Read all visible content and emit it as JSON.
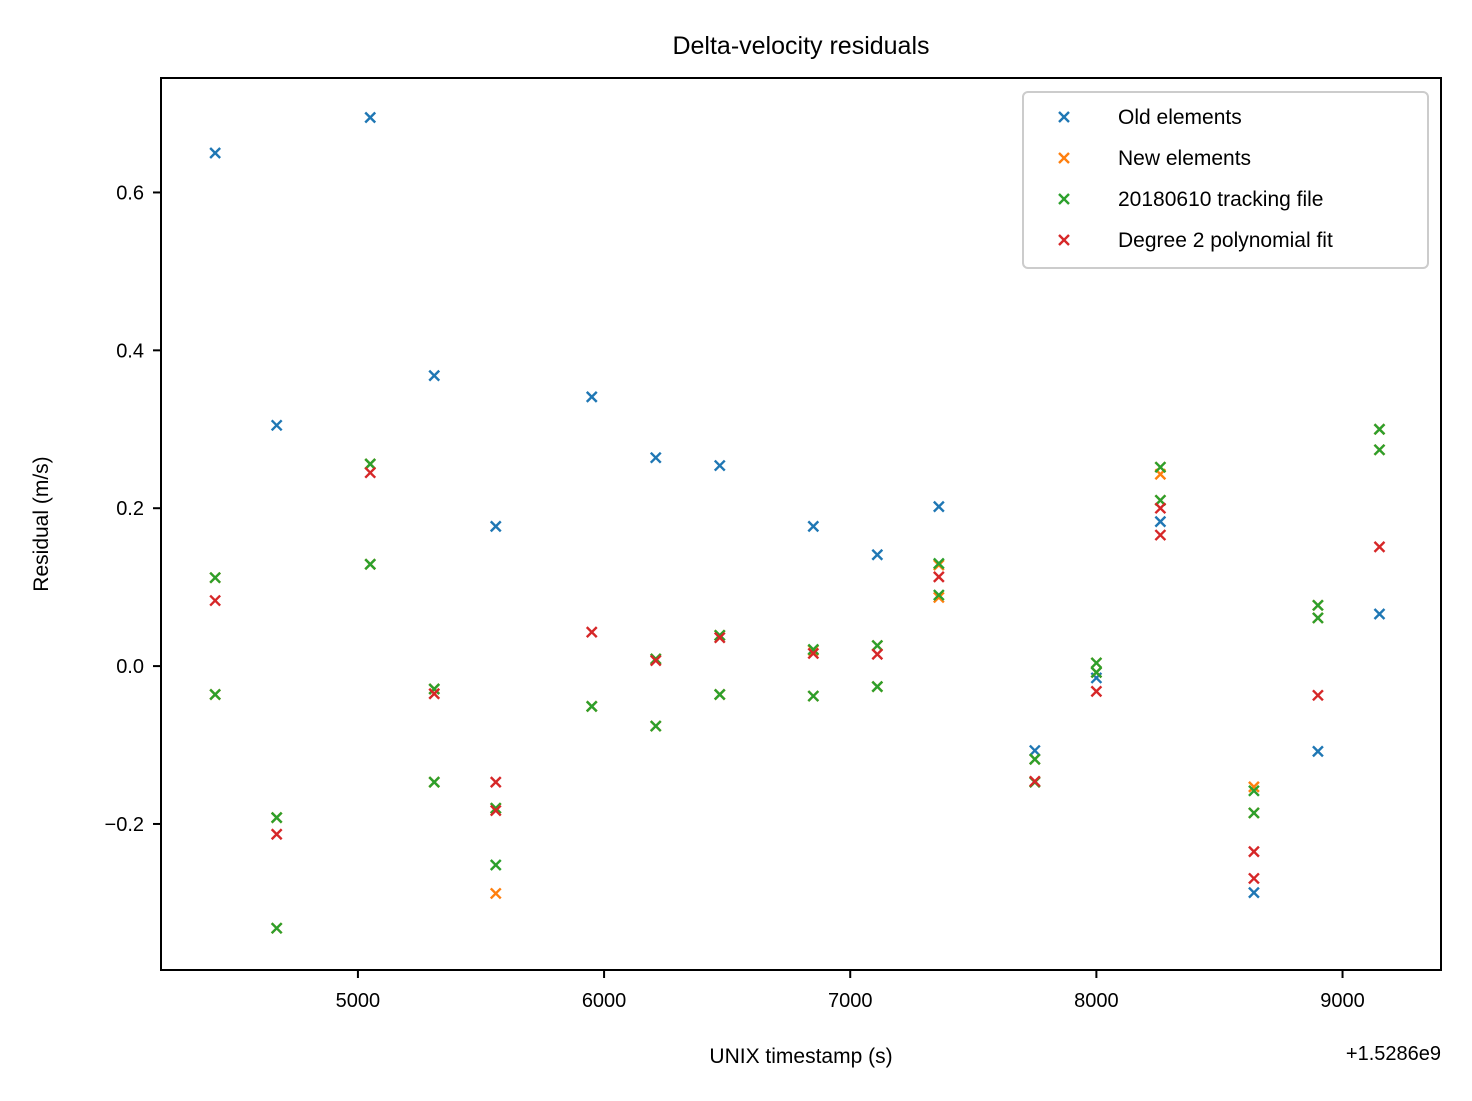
{
  "chart_data": {
    "type": "scatter",
    "title": "Delta-velocity residuals",
    "xlabel": "UNIX timestamp (s)",
    "ylabel": "Residual (m/s)",
    "x_offset_label": "+1.5286e9",
    "xlim": [
      4200,
      9400
    ],
    "ylim": [
      -0.385,
      0.745
    ],
    "xticks": [
      5000,
      6000,
      7000,
      8000,
      9000
    ],
    "yticks": [
      -0.2,
      0.0,
      0.2,
      0.4,
      0.6
    ],
    "ytick_labels": [
      "−0.2",
      "0.0",
      "0.2",
      "0.4",
      "0.6"
    ],
    "xtick_labels": [
      "5000",
      "6000",
      "7000",
      "8000",
      "9000"
    ],
    "legend_position": "top-right",
    "grid": false,
    "series": [
      {
        "name": "Old elements",
        "color": "#1f77b4",
        "points": [
          [
            4420,
            0.65
          ],
          [
            4670,
            0.305
          ],
          [
            5050,
            0.695
          ],
          [
            5310,
            0.368
          ],
          [
            5560,
            0.177
          ],
          [
            5950,
            0.341
          ],
          [
            6210,
            0.264
          ],
          [
            6470,
            0.254
          ],
          [
            6850,
            0.177
          ],
          [
            7110,
            0.141
          ],
          [
            7360,
            0.202
          ],
          [
            7750,
            -0.107
          ],
          [
            8000,
            -0.015
          ],
          [
            8260,
            0.183
          ],
          [
            8640,
            -0.287
          ],
          [
            8900,
            -0.108
          ],
          [
            9150,
            0.066
          ]
        ]
      },
      {
        "name": "New elements",
        "color": "#ff7f0e",
        "points": [
          [
            4420,
            0.112
          ],
          [
            4420,
            -0.036
          ],
          [
            4670,
            -0.192
          ],
          [
            4670,
            -0.332
          ],
          [
            5050,
            0.256
          ],
          [
            5050,
            0.129
          ],
          [
            5310,
            -0.029
          ],
          [
            5310,
            -0.147
          ],
          [
            5560,
            -0.18
          ],
          [
            5560,
            -0.288
          ],
          [
            5950,
            -0.051
          ],
          [
            6210,
            0.009
          ],
          [
            6210,
            -0.076
          ],
          [
            6470,
            0.039
          ],
          [
            6470,
            -0.036
          ],
          [
            6850,
            0.02
          ],
          [
            6850,
            -0.038
          ],
          [
            7110,
            0.026
          ],
          [
            7110,
            -0.026
          ],
          [
            7360,
            0.128
          ],
          [
            7360,
            0.087
          ],
          [
            7750,
            -0.118
          ],
          [
            7750,
            -0.147
          ],
          [
            8000,
            0.004
          ],
          [
            8000,
            -0.008
          ],
          [
            8260,
            0.252
          ],
          [
            8260,
            0.243
          ],
          [
            8260,
            0.21
          ],
          [
            8640,
            -0.153
          ],
          [
            8640,
            -0.186
          ],
          [
            8900,
            0.077
          ],
          [
            8900,
            0.061
          ],
          [
            9150,
            0.3
          ],
          [
            9150,
            0.274
          ]
        ]
      },
      {
        "name": "20180610 tracking file",
        "color": "#2ca02c",
        "points": [
          [
            4420,
            0.112
          ],
          [
            4420,
            -0.036
          ],
          [
            4670,
            -0.192
          ],
          [
            4670,
            -0.332
          ],
          [
            5050,
            0.256
          ],
          [
            5050,
            0.129
          ],
          [
            5310,
            -0.029
          ],
          [
            5310,
            -0.147
          ],
          [
            5560,
            -0.18
          ],
          [
            5560,
            -0.252
          ],
          [
            5950,
            -0.051
          ],
          [
            6210,
            0.009
          ],
          [
            6210,
            -0.076
          ],
          [
            6470,
            0.039
          ],
          [
            6470,
            -0.036
          ],
          [
            6850,
            0.021
          ],
          [
            6850,
            -0.038
          ],
          [
            7110,
            0.026
          ],
          [
            7110,
            -0.026
          ],
          [
            7360,
            0.13
          ],
          [
            7360,
            0.09
          ],
          [
            7750,
            -0.118
          ],
          [
            7750,
            -0.147
          ],
          [
            8000,
            0.004
          ],
          [
            8000,
            -0.008
          ],
          [
            8260,
            0.252
          ],
          [
            8260,
            0.21
          ],
          [
            8640,
            -0.158
          ],
          [
            8640,
            -0.186
          ],
          [
            8900,
            0.077
          ],
          [
            8900,
            0.061
          ],
          [
            9150,
            0.3
          ],
          [
            9150,
            0.274
          ]
        ]
      },
      {
        "name": "Degree 2 polynomial fit",
        "color": "#d62728",
        "points": [
          [
            4420,
            0.083
          ],
          [
            4670,
            -0.213
          ],
          [
            5050,
            0.245
          ],
          [
            5310,
            -0.035
          ],
          [
            5560,
            -0.147
          ],
          [
            5560,
            -0.183
          ],
          [
            5950,
            0.043
          ],
          [
            6210,
            0.007
          ],
          [
            6470,
            0.036
          ],
          [
            6850,
            0.016
          ],
          [
            7110,
            0.015
          ],
          [
            7360,
            0.113
          ],
          [
            7750,
            -0.146
          ],
          [
            8000,
            -0.032
          ],
          [
            8260,
            0.2
          ],
          [
            8260,
            0.166
          ],
          [
            8640,
            -0.235
          ],
          [
            8640,
            -0.269
          ],
          [
            8900,
            -0.037
          ],
          [
            9150,
            0.151
          ]
        ]
      }
    ]
  }
}
